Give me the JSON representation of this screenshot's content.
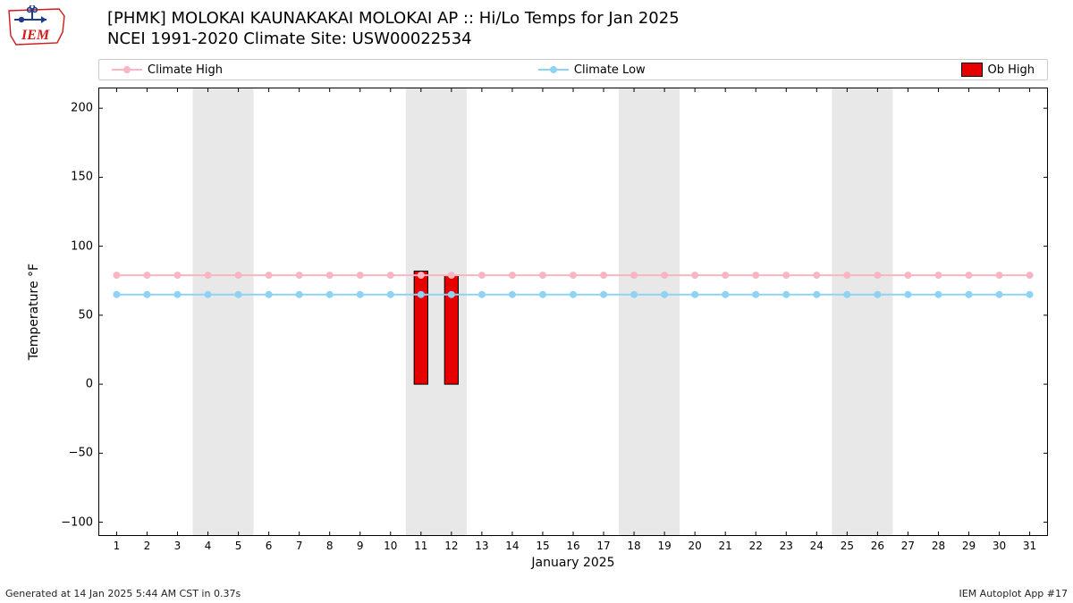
{
  "title_line1": "[PHMK] MOLOKAI KAUNAKAKAI MOLOKAI AP :: Hi/Lo Temps for Jan 2025",
  "title_line2": "NCEI 1991-2020 Climate Site: USW00022534",
  "xlabel": "January 2025",
  "ylabel": "Temperature °F",
  "footer_left": "Generated at 14 Jan 2025 5:44 AM CST in 0.37s",
  "footer_right": "IEM Autoplot App #17",
  "legend": {
    "climate_high": "Climate High",
    "climate_low": "Climate Low",
    "ob_high": "Ob High"
  },
  "colors": {
    "climate_high_line": "#f7b6c2",
    "climate_high_marker": "#f7b6c2",
    "climate_low_line": "#8fd3f4",
    "climate_low_marker": "#8fd3f4",
    "ob_high_fill": "#e60000",
    "ob_high_edge": "#000000",
    "weekend_band": "#e8e8e8",
    "axis": "#000000",
    "tick": "#000000",
    "background": "#ffffff",
    "legend_border": "#cccccc"
  },
  "chart": {
    "type": "line+bar",
    "title_fontsize": 18,
    "label_fontsize": 14,
    "tick_fontsize": 12,
    "x_days": [
      1,
      2,
      3,
      4,
      5,
      6,
      7,
      8,
      9,
      10,
      11,
      12,
      13,
      14,
      15,
      16,
      17,
      18,
      19,
      20,
      21,
      22,
      23,
      24,
      25,
      26,
      27,
      28,
      29,
      30,
      31
    ],
    "xlim": [
      0.4,
      31.6
    ],
    "ylim": [
      -110,
      215
    ],
    "yticks": [
      -100,
      -50,
      0,
      50,
      100,
      150,
      200
    ],
    "climate_high_values": [
      79,
      79,
      79,
      79,
      79,
      79,
      79,
      79,
      79,
      79,
      79,
      79,
      79,
      79,
      79,
      79,
      79,
      79,
      79,
      79,
      79,
      79,
      79,
      79,
      79,
      79,
      79,
      79,
      79,
      79,
      79
    ],
    "climate_low_values": [
      65,
      65,
      65,
      65,
      65,
      65,
      65,
      65,
      65,
      65,
      65,
      65,
      65,
      65,
      65,
      65,
      65,
      65,
      65,
      65,
      65,
      65,
      65,
      65,
      65,
      65,
      65,
      65,
      65,
      65,
      65
    ],
    "ob_high_bars": [
      {
        "day": 11,
        "low": 0,
        "high": 82
      },
      {
        "day": 12,
        "low": 0,
        "high": 79
      }
    ],
    "weekend_bands": [
      {
        "start": 3.5,
        "end": 5.5
      },
      {
        "start": 10.5,
        "end": 12.5
      },
      {
        "start": 17.5,
        "end": 19.5
      },
      {
        "start": 24.5,
        "end": 26.5
      }
    ],
    "marker_radius": 4,
    "line_width": 2,
    "bar_width": 0.45
  },
  "logo": {
    "text": "IEM",
    "text_color": "#d11a1a",
    "outline_color": "#1a3a8a"
  }
}
